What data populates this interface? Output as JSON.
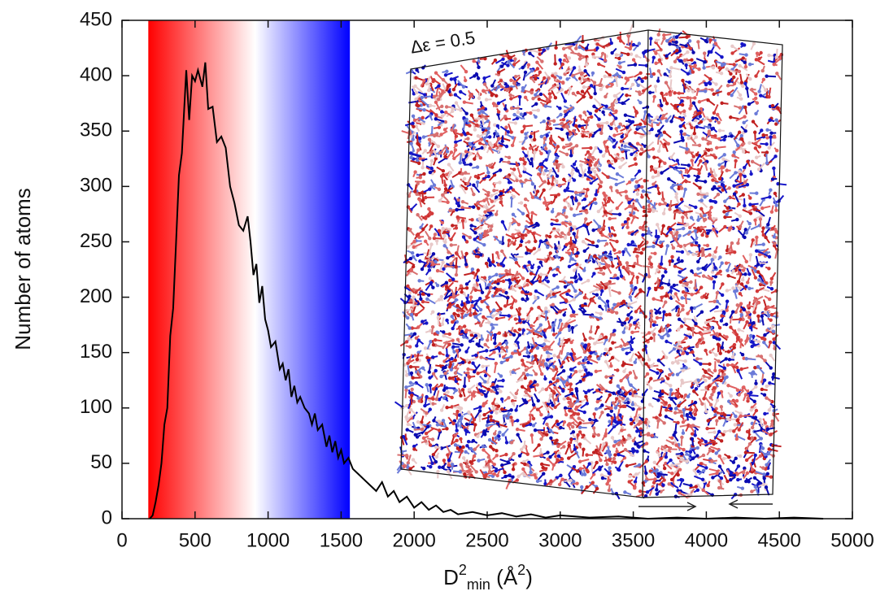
{
  "chart_data": {
    "type": "line",
    "x_label": [
      "D",
      "2",
      "min",
      " (Å",
      "2",
      ")"
    ],
    "y_label": "Number of atoms",
    "annotation": "Δε = 0.5",
    "xlim": [
      0,
      5000
    ],
    "ylim": [
      0,
      450
    ],
    "xticks": [
      0,
      500,
      1000,
      1500,
      2000,
      2500,
      3000,
      3500,
      4000,
      4500,
      5000
    ],
    "yticks": [
      0,
      50,
      100,
      150,
      200,
      250,
      300,
      350,
      400,
      450
    ],
    "color": "#000000",
    "color_band": {
      "x": [
        180,
        1560
      ],
      "colors": [
        "#ff0000",
        "#ffffff",
        "#0000ff"
      ]
    },
    "x": [
      190,
      210,
      230,
      250,
      270,
      290,
      310,
      330,
      350,
      370,
      390,
      410,
      440,
      460,
      480,
      500,
      520,
      550,
      570,
      590,
      620,
      650,
      680,
      710,
      740,
      770,
      800,
      830,
      860,
      880,
      900,
      920,
      940,
      960,
      980,
      1000,
      1020,
      1050,
      1080,
      1100,
      1120,
      1140,
      1160,
      1180,
      1200,
      1220,
      1250,
      1280,
      1300,
      1320,
      1340,
      1370,
      1400,
      1420,
      1440,
      1460,
      1480,
      1500,
      1520,
      1550,
      1580,
      1620,
      1660,
      1700,
      1740,
      1780,
      1820,
      1860,
      1900,
      1950,
      2000,
      2050,
      2100,
      2150,
      2200,
      2250,
      2300,
      2400,
      2500,
      2600,
      2700,
      2800,
      2900,
      3000,
      3200,
      3400,
      3600,
      3800,
      4000,
      4200,
      4400,
      4600,
      4800
    ],
    "values": [
      0,
      3,
      15,
      30,
      50,
      85,
      100,
      165,
      190,
      250,
      310,
      330,
      405,
      360,
      400,
      395,
      405,
      390,
      412,
      370,
      372,
      340,
      345,
      335,
      300,
      285,
      265,
      260,
      273,
      250,
      220,
      230,
      195,
      210,
      180,
      170,
      155,
      160,
      135,
      140,
      125,
      135,
      110,
      120,
      105,
      110,
      100,
      95,
      85,
      95,
      80,
      85,
      65,
      75,
      60,
      70,
      55,
      62,
      50,
      55,
      45,
      40,
      35,
      30,
      25,
      33,
      20,
      25,
      15,
      20,
      10,
      15,
      8,
      12,
      6,
      8,
      4,
      6,
      3,
      5,
      2,
      4,
      1,
      3,
      1,
      2,
      0,
      1,
      0,
      1,
      0,
      1,
      0
    ]
  }
}
